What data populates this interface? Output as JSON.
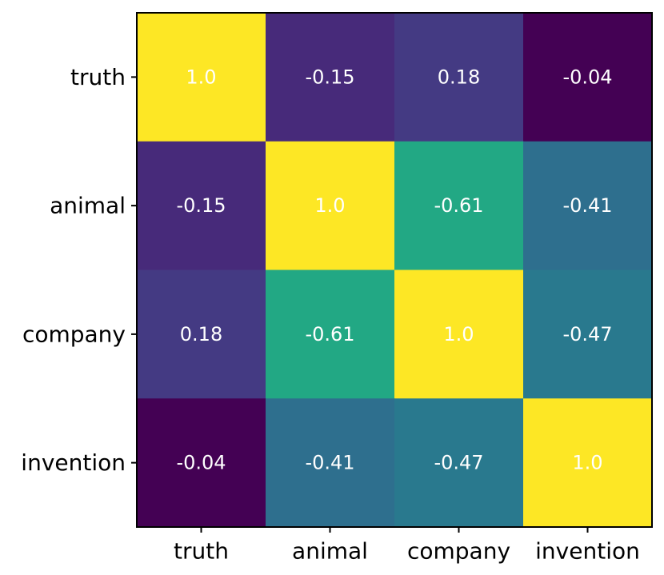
{
  "chart_data": {
    "type": "heatmap",
    "title": "",
    "xlabel": "",
    "ylabel": "",
    "x_categories": [
      "truth",
      "animal",
      "company",
      "invention"
    ],
    "y_categories": [
      "truth",
      "animal",
      "company",
      "invention"
    ],
    "values": [
      [
        1.0,
        -0.15,
        0.18,
        -0.04
      ],
      [
        -0.15,
        1.0,
        -0.61,
        -0.41
      ],
      [
        0.18,
        -0.61,
        1.0,
        -0.47
      ],
      [
        -0.04,
        -0.41,
        -0.47,
        1.0
      ]
    ],
    "value_labels": [
      [
        "1.0",
        "-0.15",
        "0.18",
        "-0.04"
      ],
      [
        "-0.15",
        "1.0",
        "-0.61",
        "-0.41"
      ],
      [
        "0.18",
        "-0.61",
        "1.0",
        "-0.47"
      ],
      [
        "-0.04",
        "-0.41",
        "-0.47",
        "1.0"
      ]
    ],
    "cell_colors": [
      [
        "#fde725",
        "#472a7a",
        "#443a83",
        "#440154"
      ],
      [
        "#472a7a",
        "#fde725",
        "#22a884",
        "#2e6f8e"
      ],
      [
        "#443a83",
        "#22a884",
        "#fde725",
        "#29798e"
      ],
      [
        "#440154",
        "#2e6f8e",
        "#29798e",
        "#fde725"
      ]
    ],
    "colormap": "viridis",
    "annotation_color": "#ffffff",
    "grid": false,
    "legend": "none"
  }
}
